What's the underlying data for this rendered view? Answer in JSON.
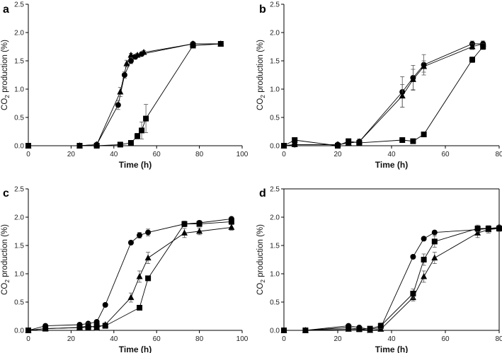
{
  "chart_data": [
    {
      "type": "line",
      "panel": "a",
      "xlabel": "Time (h)",
      "ylabel": {
        "main": "CO",
        "sub": "2",
        "rest": " production (%)"
      },
      "xlim": [
        0,
        100
      ],
      "ylim": [
        0,
        2.5
      ],
      "xticks": [
        0,
        20,
        40,
        60,
        80,
        100
      ],
      "yticks": [
        "0.0",
        "0.5",
        "1.0",
        "1.5",
        "2.0",
        "2.5"
      ],
      "series": [
        {
          "name": "circle",
          "marker": "circle",
          "x": [
            0,
            24,
            32,
            42,
            45,
            48,
            50,
            53,
            77,
            90
          ],
          "y": [
            0.0,
            0.0,
            0.02,
            0.72,
            1.25,
            1.5,
            1.57,
            1.62,
            1.8,
            1.8
          ],
          "err": [
            0,
            0,
            0,
            0.08,
            0.06,
            0.05,
            0.04,
            0.03,
            0.02,
            0.02
          ]
        },
        {
          "name": "triangle",
          "marker": "triangle",
          "x": [
            0,
            24,
            32,
            43,
            46,
            48,
            51,
            54,
            77,
            90
          ],
          "y": [
            0.0,
            0.0,
            0.02,
            0.95,
            1.45,
            1.6,
            1.6,
            1.65,
            1.8,
            1.8
          ],
          "err": [
            0,
            0,
            0,
            0.08,
            0.06,
            0.03,
            0.03,
            0.03,
            0.02,
            0.02
          ]
        },
        {
          "name": "square",
          "marker": "square",
          "x": [
            0,
            24,
            32,
            43,
            48,
            51,
            53,
            55,
            77,
            90
          ],
          "y": [
            0.0,
            0.0,
            0.0,
            0.02,
            0.05,
            0.17,
            0.27,
            0.48,
            1.77,
            1.8
          ],
          "err": [
            0,
            0,
            0,
            0,
            0.02,
            0.05,
            0.15,
            0.25,
            0.03,
            0.02
          ]
        }
      ]
    },
    {
      "type": "line",
      "panel": "b",
      "xlabel": "Time (h)",
      "ylabel": {
        "main": "CO",
        "sub": "2",
        "rest": " production (%)"
      },
      "xlim": [
        0,
        80
      ],
      "ylim": [
        0,
        2.5
      ],
      "xticks": [
        0,
        20,
        40,
        60,
        80
      ],
      "yticks": [
        "0.0",
        "0.5",
        "1.0",
        "1.5",
        "2.0",
        "2.5"
      ],
      "series": [
        {
          "name": "circle",
          "marker": "circle",
          "x": [
            0,
            4,
            20,
            24,
            28,
            44,
            48,
            52,
            70,
            74
          ],
          "y": [
            0.0,
            0.02,
            0.02,
            0.05,
            0.07,
            0.95,
            1.2,
            1.43,
            1.8,
            1.8
          ],
          "err": [
            0,
            0,
            0,
            0,
            0.05,
            0.27,
            0.22,
            0.18,
            0.05,
            0.05
          ]
        },
        {
          "name": "triangle",
          "marker": "triangle",
          "x": [
            0,
            4,
            20,
            24,
            28,
            44,
            48,
            52,
            70,
            74
          ],
          "y": [
            0.0,
            0.02,
            0.02,
            0.05,
            0.07,
            0.88,
            1.17,
            1.4,
            1.75,
            1.8
          ],
          "err": [
            0,
            0,
            0,
            0,
            0.05,
            0.2,
            0.18,
            0.1,
            0.05,
            0.05
          ]
        },
        {
          "name": "square",
          "marker": "square",
          "x": [
            0,
            4,
            20,
            24,
            28,
            44,
            48,
            52,
            70,
            74
          ],
          "y": [
            0.0,
            0.1,
            0.0,
            0.08,
            0.05,
            0.1,
            0.08,
            0.2,
            1.52,
            1.75
          ],
          "err": [
            0,
            0.02,
            0,
            0.02,
            0.02,
            0.02,
            0.02,
            0.03,
            0.05,
            0.05
          ]
        }
      ]
    },
    {
      "type": "line",
      "panel": "c",
      "xlabel": "Time (h)",
      "ylabel": {
        "main": "CO",
        "sub": "2",
        "rest": " production (%)"
      },
      "xlim": [
        0,
        100
      ],
      "ylim": [
        0,
        2.5
      ],
      "xticks": [
        0,
        20,
        40,
        60,
        80,
        100
      ],
      "yticks": [
        "0.0",
        "0.5",
        "1.0",
        "1.5",
        "2.0",
        "2.5"
      ],
      "series": [
        {
          "name": "circle",
          "marker": "circle",
          "x": [
            0,
            8,
            24,
            28,
            32,
            36,
            48,
            52,
            56,
            73,
            80,
            95
          ],
          "y": [
            0.0,
            0.08,
            0.1,
            0.12,
            0.15,
            0.45,
            1.55,
            1.68,
            1.73,
            1.88,
            1.9,
            1.97
          ],
          "err": [
            0,
            0,
            0,
            0.02,
            0.03,
            0.03,
            0.03,
            0.05,
            0.06,
            0.05,
            0.04,
            0.03
          ]
        },
        {
          "name": "triangle",
          "marker": "triangle",
          "x": [
            0,
            8,
            24,
            28,
            32,
            36,
            48,
            52,
            56,
            73,
            80,
            95
          ],
          "y": [
            0.0,
            0.03,
            0.05,
            0.08,
            0.05,
            0.1,
            0.58,
            0.95,
            1.28,
            1.72,
            1.75,
            1.82
          ],
          "err": [
            0,
            0,
            0,
            0.05,
            0.05,
            0.03,
            0.08,
            0.1,
            0.1,
            0.08,
            0.06,
            0.05
          ]
        },
        {
          "name": "square",
          "marker": "square",
          "x": [
            0,
            8,
            24,
            28,
            32,
            36,
            52,
            56,
            73,
            80,
            95
          ],
          "y": [
            0.0,
            0.03,
            0.05,
            0.05,
            0.08,
            0.08,
            0.4,
            0.92,
            1.88,
            1.88,
            1.92
          ],
          "err": [
            0,
            0,
            0,
            0,
            0.03,
            0.03,
            0.03,
            0.04,
            0.04,
            0.04,
            0.04
          ]
        }
      ]
    },
    {
      "type": "line",
      "panel": "d",
      "xlabel": "Time (h)",
      "ylabel": {
        "main": "CO",
        "sub": "2",
        "rest": " production (%)"
      },
      "xlim": [
        0,
        80
      ],
      "ylim": [
        0,
        2.5
      ],
      "xticks": [
        0,
        20,
        40,
        60,
        80
      ],
      "yticks": [
        "0.0",
        "0.5",
        "1.0",
        "1.5",
        "2.0",
        "2.5"
      ],
      "series": [
        {
          "name": "circle",
          "marker": "circle",
          "x": [
            0,
            8,
            24,
            28,
            32,
            36,
            48,
            52,
            56,
            72,
            76,
            80
          ],
          "y": [
            0.0,
            0.0,
            0.08,
            0.05,
            0.02,
            0.05,
            1.3,
            1.62,
            1.73,
            1.78,
            1.8,
            1.82
          ],
          "err": [
            0,
            0,
            0,
            0,
            0,
            0,
            0.03,
            0.03,
            0.03,
            0.03,
            0.03,
            0.03
          ]
        },
        {
          "name": "triangle",
          "marker": "triangle",
          "x": [
            0,
            8,
            24,
            28,
            32,
            36,
            48,
            52,
            56,
            72,
            76,
            80
          ],
          "y": [
            0.0,
            0.0,
            0.02,
            0.02,
            0.0,
            0.02,
            0.58,
            0.95,
            1.28,
            1.72,
            1.78,
            1.8
          ],
          "err": [
            0,
            0,
            0,
            0,
            0,
            0,
            0.06,
            0.1,
            0.1,
            0.08,
            0.06,
            0.04
          ]
        },
        {
          "name": "square",
          "marker": "square",
          "x": [
            0,
            8,
            24,
            28,
            32,
            36,
            48,
            52,
            56,
            72,
            76,
            80
          ],
          "y": [
            0.0,
            0.0,
            0.05,
            0.02,
            0.03,
            0.08,
            0.65,
            1.25,
            1.57,
            1.8,
            1.8,
            1.8
          ],
          "err": [
            0,
            0,
            0,
            0,
            0,
            0.05,
            0.08,
            0.1,
            0.1,
            0.06,
            0.05,
            0.05
          ]
        }
      ]
    }
  ]
}
